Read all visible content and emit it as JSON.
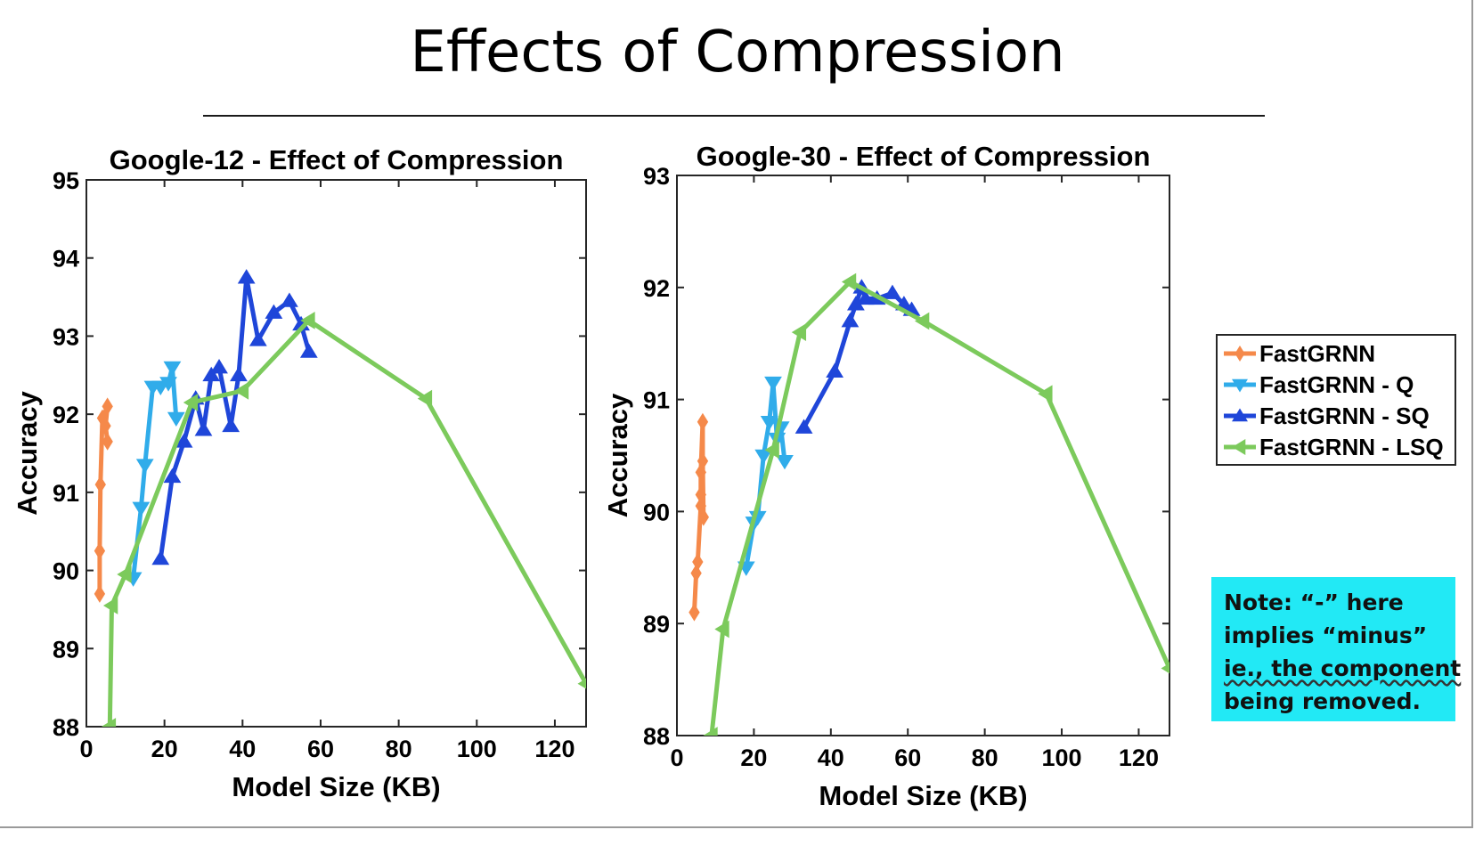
{
  "slide": {
    "title": "Effects of Compression",
    "note_lines": [
      "Note: “-” here",
      "implies “minus”",
      "ie., the component",
      "being removed."
    ],
    "note_background": "#22e9f5"
  },
  "legend": {
    "entries": [
      {
        "name": "FastGRNN",
        "color": "#f5894a",
        "marker": "diamond"
      },
      {
        "name": "FastGRNN - Q",
        "color": "#30acea",
        "marker": "triangle-down"
      },
      {
        "name": "FastGRNN - SQ",
        "color": "#1f46d9",
        "marker": "triangle-up"
      },
      {
        "name": "FastGRNN - LSQ",
        "color": "#7cca5c",
        "marker": "triangle-left"
      }
    ]
  },
  "chart_data": [
    {
      "type": "line",
      "title": "Google-12 - Effect of Compression",
      "xlabel": "Model Size (KB)",
      "ylabel": "Accuracy",
      "xlim": [
        0,
        128
      ],
      "ylim": [
        88,
        95
      ],
      "xticks": [
        0,
        20,
        40,
        60,
        80,
        100,
        120
      ],
      "yticks": [
        88,
        89,
        90,
        91,
        92,
        93,
        94,
        95
      ],
      "grid": false,
      "series": [
        {
          "name": "FastGRNN",
          "color": "#f5894a",
          "marker": "diamond",
          "points": [
            [
              3.4,
              89.7
            ],
            [
              3.4,
              90.25
            ],
            [
              3.6,
              91.1
            ],
            [
              4.1,
              91.95
            ],
            [
              5.4,
              92.1
            ],
            [
              4.9,
              91.85
            ],
            [
              5.4,
              91.65
            ]
          ]
        },
        {
          "name": "FastGRNN - Q",
          "color": "#30acea",
          "marker": "triangle-down",
          "points": [
            [
              12,
              89.9
            ],
            [
              14,
              90.8
            ],
            [
              15,
              91.35
            ],
            [
              17,
              92.35
            ],
            [
              19,
              92.35
            ],
            [
              21,
              92.4
            ],
            [
              22,
              92.6
            ],
            [
              23,
              91.95
            ]
          ]
        },
        {
          "name": "FastGRNN - SQ",
          "color": "#1f46d9",
          "marker": "triangle-up",
          "points": [
            [
              19,
              90.15
            ],
            [
              22,
              91.2
            ],
            [
              25,
              91.65
            ],
            [
              28,
              92.2
            ],
            [
              30,
              91.8
            ],
            [
              32,
              92.5
            ],
            [
              34,
              92.6
            ],
            [
              37,
              91.85
            ],
            [
              39,
              92.5
            ],
            [
              41,
              93.75
            ],
            [
              44,
              92.95
            ],
            [
              48,
              93.3
            ],
            [
              52,
              93.45
            ],
            [
              55,
              93.15
            ],
            [
              57,
              92.8
            ]
          ]
        },
        {
          "name": "FastGRNN - LSQ",
          "color": "#7cca5c",
          "marker": "triangle-left",
          "points": [
            [
              6,
              88.0
            ],
            [
              6.5,
              89.55
            ],
            [
              10,
              89.95
            ],
            [
              27,
              92.15
            ],
            [
              40,
              92.3
            ],
            [
              57,
              93.2
            ],
            [
              87,
              92.2
            ],
            [
              128,
              88.55
            ]
          ]
        }
      ]
    },
    {
      "type": "line",
      "title": "Google-30 - Effect of Compression",
      "xlabel": "Model Size (KB)",
      "ylabel": "Accuracy",
      "xlim": [
        0,
        128
      ],
      "ylim": [
        88,
        93
      ],
      "xticks": [
        0,
        20,
        40,
        60,
        80,
        100,
        120
      ],
      "yticks": [
        88,
        89,
        90,
        91,
        92,
        93
      ],
      "grid": false,
      "series": [
        {
          "name": "FastGRNN",
          "color": "#f5894a",
          "marker": "diamond",
          "points": [
            [
              4.5,
              89.1
            ],
            [
              5,
              89.45
            ],
            [
              5.4,
              89.55
            ],
            [
              6.2,
              90.05
            ],
            [
              6.2,
              90.35
            ],
            [
              6.7,
              90.8
            ],
            [
              6.7,
              90.45
            ],
            [
              6.9,
              89.95
            ],
            [
              6.2,
              90.15
            ]
          ]
        },
        {
          "name": "FastGRNN - Q",
          "color": "#30acea",
          "marker": "triangle-down",
          "points": [
            [
              18,
              89.5
            ],
            [
              20,
              89.9
            ],
            [
              21,
              89.95
            ],
            [
              22.5,
              90.5
            ],
            [
              24,
              90.8
            ],
            [
              25,
              91.15
            ],
            [
              26,
              90.65
            ],
            [
              27,
              90.75
            ],
            [
              28,
              90.45
            ]
          ]
        },
        {
          "name": "FastGRNN - SQ",
          "color": "#1f46d9",
          "marker": "triangle-up",
          "points": [
            [
              33,
              90.75
            ],
            [
              41,
              91.25
            ],
            [
              45,
              91.7
            ],
            [
              46.5,
              91.85
            ],
            [
              48,
              92.0
            ],
            [
              49,
              91.9
            ],
            [
              52,
              91.9
            ],
            [
              56,
              91.95
            ],
            [
              59,
              91.85
            ],
            [
              61,
              91.8
            ]
          ]
        },
        {
          "name": "FastGRNN - LSQ",
          "color": "#7cca5c",
          "marker": "triangle-left",
          "points": [
            [
              9,
              88.0
            ],
            [
              12,
              88.95
            ],
            [
              25,
              90.55
            ],
            [
              32,
              91.6
            ],
            [
              45,
              92.05
            ],
            [
              64,
              91.7
            ],
            [
              96,
              91.05
            ],
            [
              128,
              88.6
            ]
          ]
        }
      ]
    }
  ]
}
